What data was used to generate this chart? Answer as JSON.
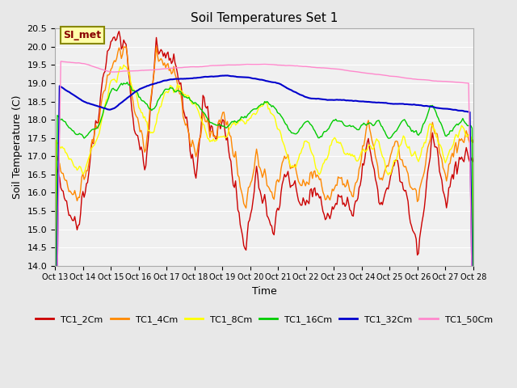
{
  "title": "Soil Temperatures Set 1",
  "xlabel": "Time",
  "ylabel": "Soil Temperature (C)",
  "ylim": [
    14.0,
    20.5
  ],
  "yticks": [
    14.0,
    14.5,
    15.0,
    15.5,
    16.0,
    16.5,
    17.0,
    17.5,
    18.0,
    18.5,
    19.0,
    19.5,
    20.0,
    20.5
  ],
  "x_labels": [
    "Oct 13",
    "Oct 14",
    "Oct 15",
    "Oct 16",
    "Oct 17",
    "Oct 18",
    "Oct 19",
    "Oct 20",
    "Oct 21",
    "Oct 22",
    "Oct 23",
    "Oct 24",
    "Oct 25",
    "Oct 26",
    "Oct 27",
    "Oct 28"
  ],
  "x_tick_labels": [
    "Oct 13Oct 14Oct 15Oct 16Oct 17Oct 18Oct 19Oct 20Oct 21Oct 22Oct 23Oct 24Oct 25Oct 26Oct 27Oct 28"
  ],
  "colors": {
    "TC1_2Cm": "#cc0000",
    "TC1_4Cm": "#ff8800",
    "TC1_8Cm": "#ffff00",
    "TC1_16Cm": "#00cc00",
    "TC1_32Cm": "#0000cc",
    "TC1_50Cm": "#ff88cc"
  },
  "annotation_text": "SI_met",
  "annotation_bg": "#ffffaa",
  "annotation_border": "#888800",
  "background_color": "#e8e8e8",
  "plot_bg": "#f0f0f0",
  "grid_color": "#ffffff",
  "n_points": 360
}
